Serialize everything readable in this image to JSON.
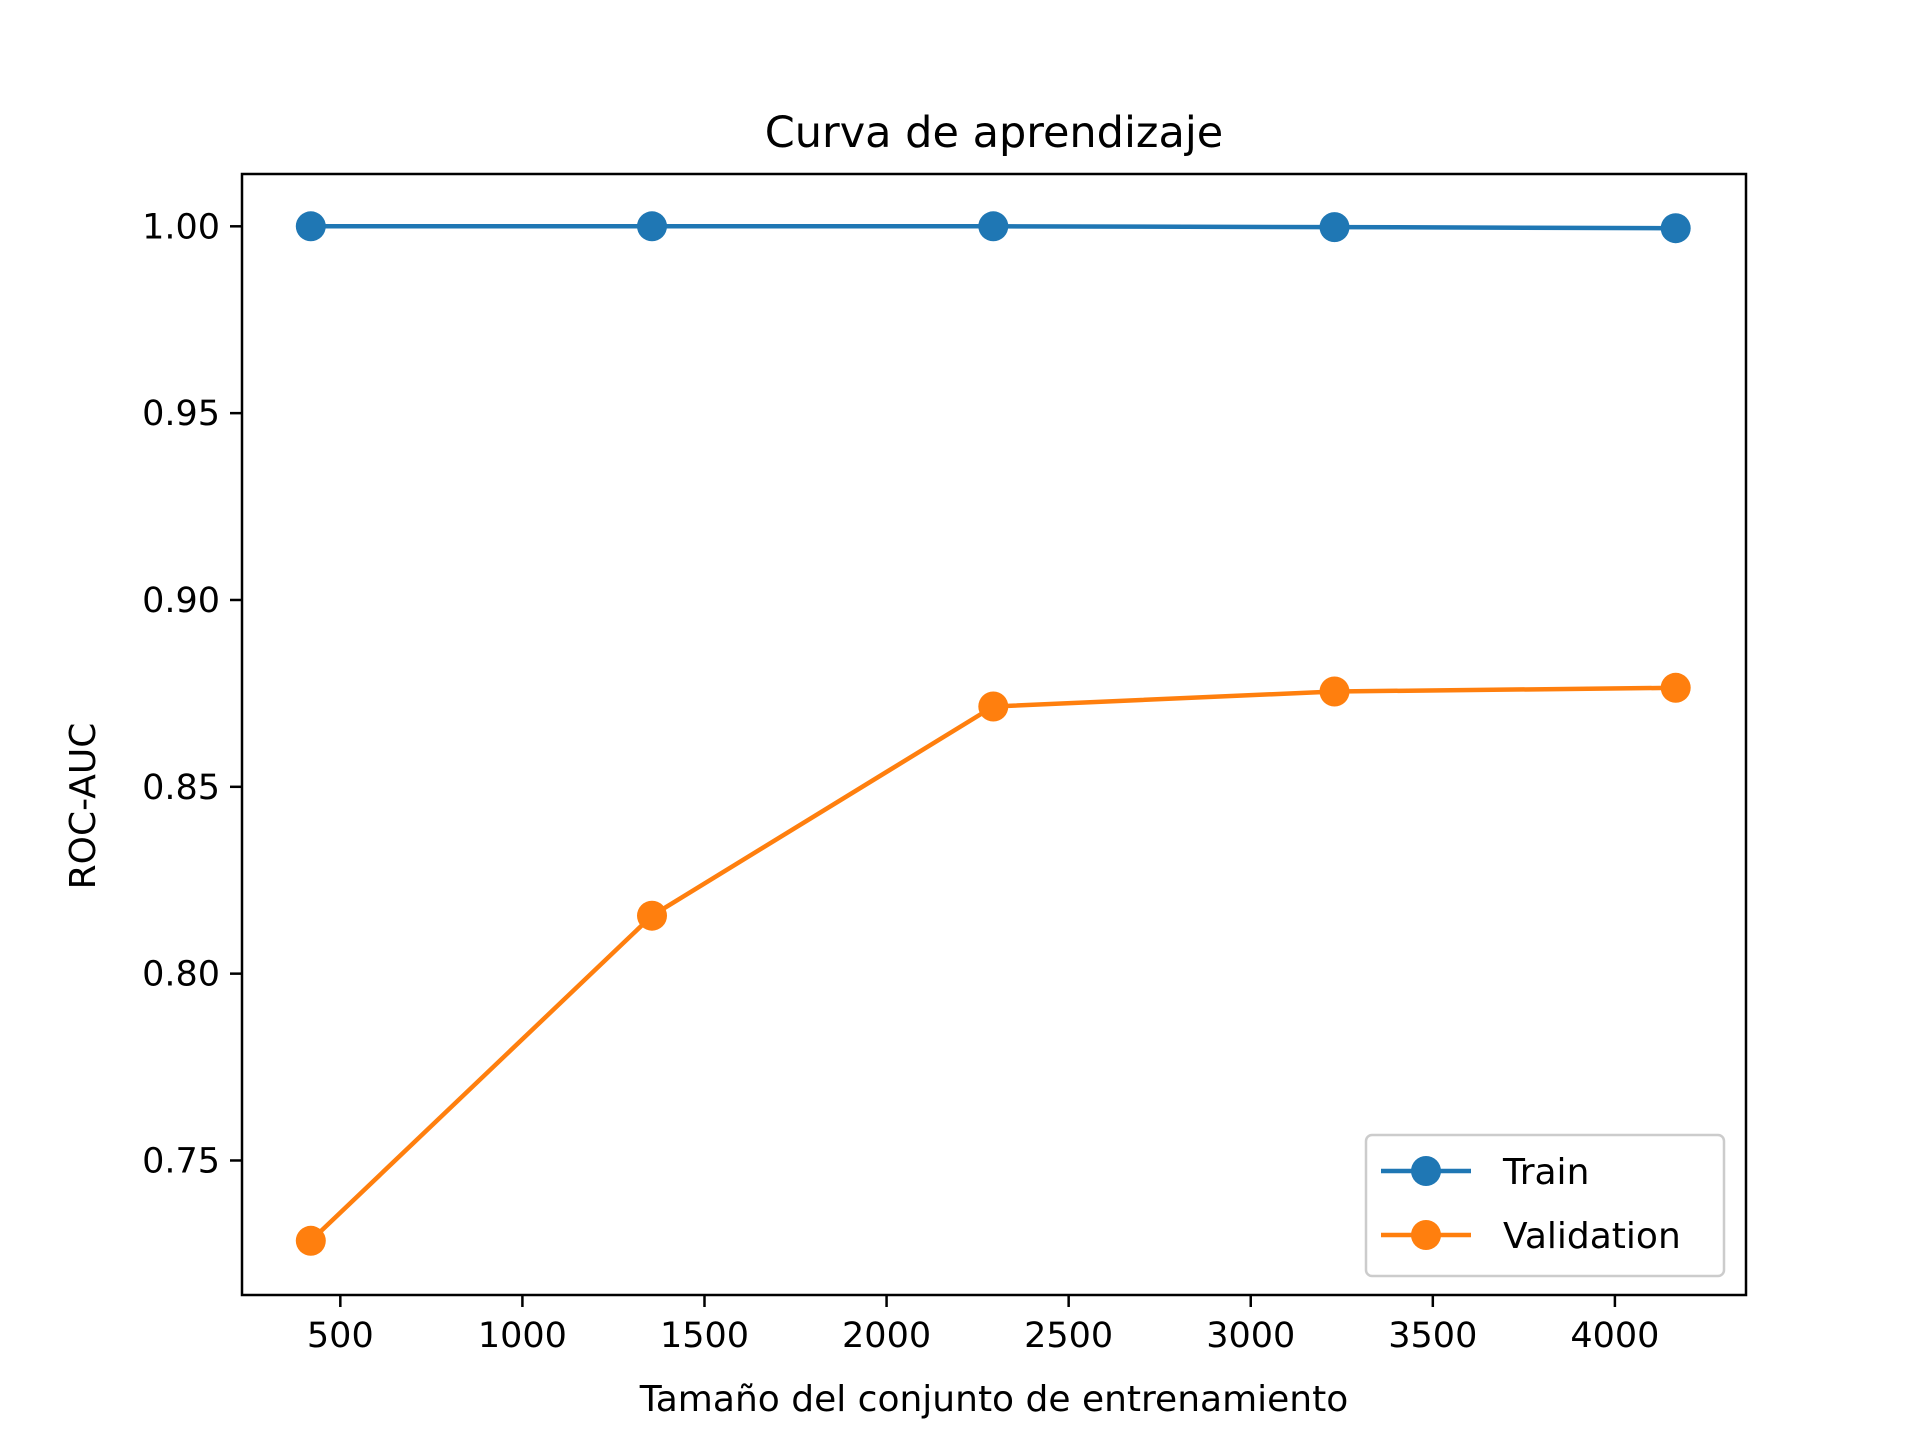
{
  "chart_data": {
    "type": "line",
    "title": "Curva de aprendizaje",
    "xlabel": "Tamaño del conjunto de entrenamiento",
    "ylabel": "ROC-AUC",
    "xlim": [
      230,
      4360
    ],
    "ylim": [
      0.714,
      1.014
    ],
    "xticks": [
      500,
      1000,
      1500,
      2000,
      2500,
      3000,
      3500,
      4000
    ],
    "xtick_labels": [
      "500",
      "1000",
      "1500",
      "2000",
      "2500",
      "3000",
      "3500",
      "4000"
    ],
    "yticks": [
      0.75,
      0.8,
      0.85,
      0.9,
      0.95,
      1.0
    ],
    "ytick_labels": [
      "0.75",
      "0.80",
      "0.85",
      "0.90",
      "0.95",
      "1.00"
    ],
    "x": [
      419,
      1356,
      2293,
      3230,
      4167
    ],
    "series": [
      {
        "name": "Train",
        "color": "#1f77b4",
        "values": [
          1.0,
          1.0,
          1.0,
          0.9998,
          0.9995
        ]
      },
      {
        "name": "Validation",
        "color": "#ff7f0e",
        "values": [
          0.7285,
          0.8155,
          0.8715,
          0.8755,
          0.8765
        ]
      }
    ],
    "grid": false,
    "legend": "lower-right"
  }
}
